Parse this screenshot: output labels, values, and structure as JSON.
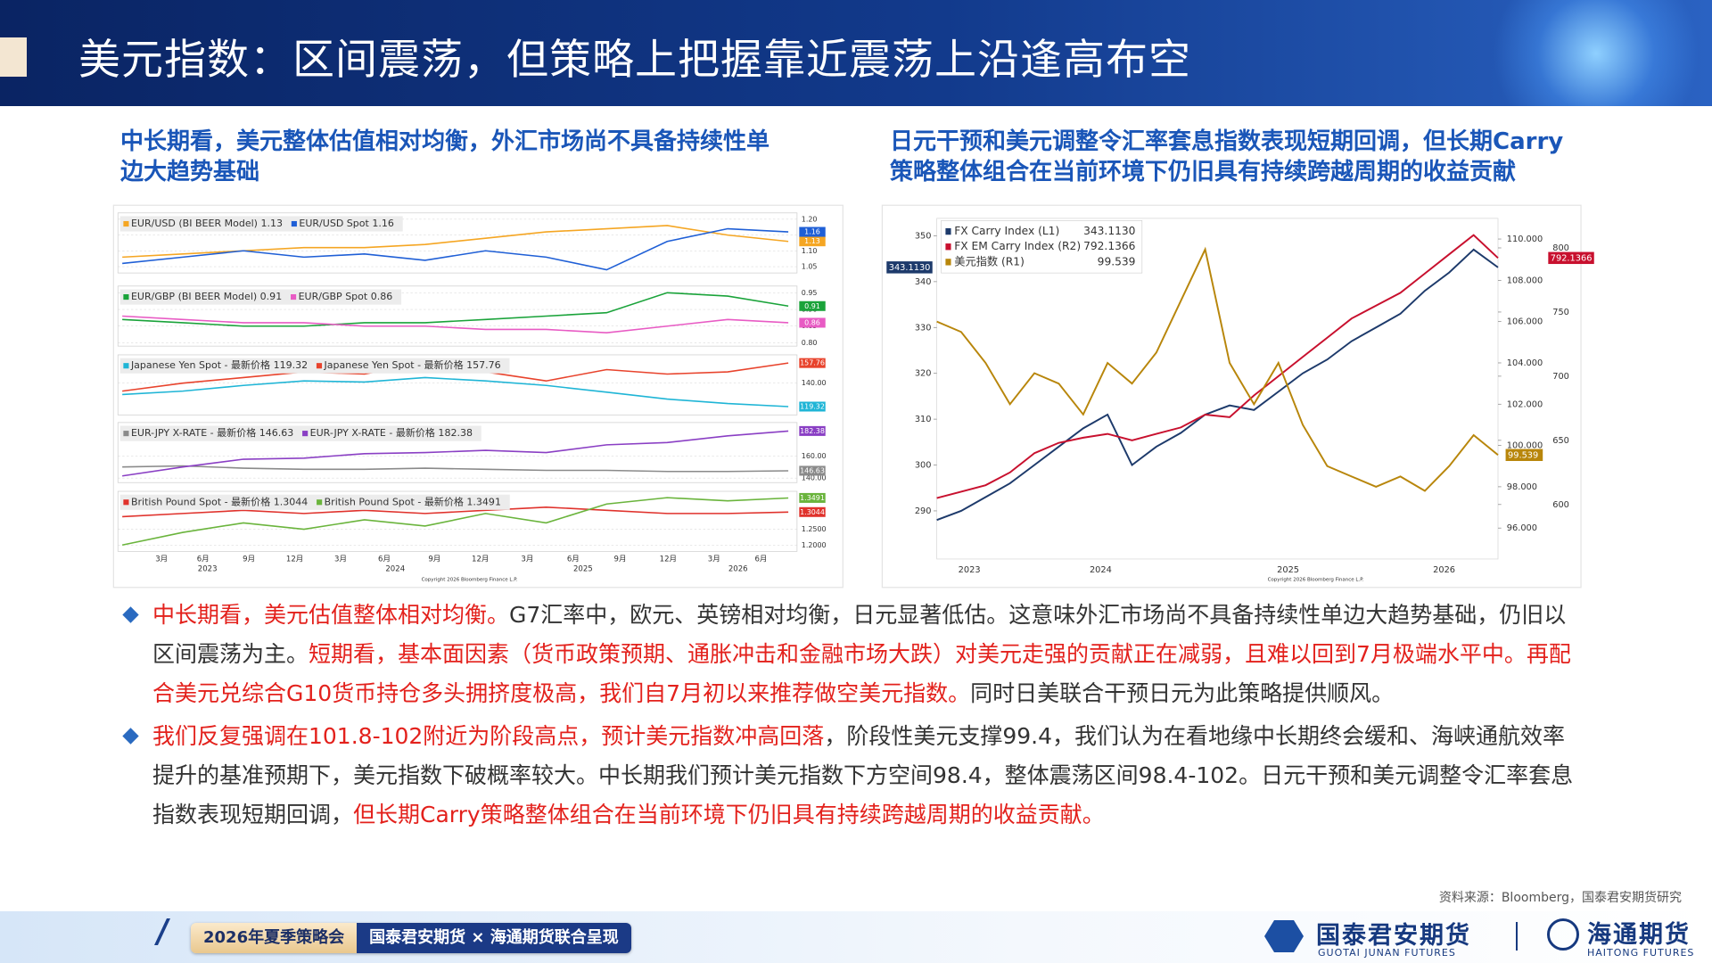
{
  "header": {
    "title": "美元指数：区间震荡，但策略上把握靠近震荡上沿逢高布空"
  },
  "colors": {
    "emphasis": "#e3211c",
    "text": "#333333"
  },
  "left": {
    "subtitle_lines": [
      "中长期看，美元整体估值相对均衡，外汇市场尚不具备持续性单",
      "边大趋势基础"
    ],
    "chart": {
      "panels": [
        {
          "ylim": [
            1.03,
            1.22
          ],
          "yticks": [
            {
              "value": 1.2,
              "label": "1.20"
            },
            {
              "value": 1.15,
              "label": "1.15"
            },
            {
              "value": 1.1,
              "label": "1.10"
            },
            {
              "value": 1.05,
              "label": "1.05"
            }
          ],
          "series": [
            {
              "name": "EUR/USD (BI BEER Model) 1.13",
              "color": "#f5a623",
              "values": [
                1.08,
                1.09,
                1.1,
                1.11,
                1.11,
                1.12,
                1.14,
                1.16,
                1.17,
                1.18,
                1.15,
                1.13
              ]
            },
            {
              "name": "EUR/USD Spot 1.16",
              "color": "#1f5fd6",
              "values": [
                1.06,
                1.08,
                1.1,
                1.08,
                1.09,
                1.07,
                1.1,
                1.08,
                1.04,
                1.13,
                1.17,
                1.16
              ]
            }
          ]
        },
        {
          "ylim": [
            0.79,
            0.97
          ],
          "yticks": [
            {
              "value": 0.95,
              "label": "0.95"
            },
            {
              "value": 0.9,
              "label": "0.90"
            },
            {
              "value": 0.85,
              "label": "0.85"
            },
            {
              "value": 0.8,
              "label": "0.80"
            }
          ],
          "series": [
            {
              "name": "EUR/GBP (BI BEER Model) 0.91",
              "color": "#1aa33a",
              "values": [
                0.87,
                0.86,
                0.85,
                0.85,
                0.86,
                0.86,
                0.87,
                0.88,
                0.89,
                0.95,
                0.94,
                0.91
              ]
            },
            {
              "name": "EUR/GBP Spot 0.86",
              "color": "#e85bc4",
              "values": [
                0.88,
                0.87,
                0.86,
                0.86,
                0.85,
                0.85,
                0.84,
                0.84,
                0.83,
                0.85,
                0.87,
                0.86
              ]
            }
          ]
        },
        {
          "ylim": [
            112,
            165
          ],
          "yticks": [
            {
              "value": 140,
              "label": "140.00"
            }
          ],
          "series": [
            {
              "name": "Japanese Yen Spot - 最新价格 119.32",
              "color": "#1fb5d6",
              "values": [
                130,
                133,
                138,
                142,
                141,
                145,
                142,
                138,
                132,
                126,
                122,
                119.32
              ]
            },
            {
              "name": "Japanese Yen Spot - 最新价格 157.76",
              "color": "#e8432c",
              "values": [
                133,
                140,
                145,
                150,
                148,
                158,
                150,
                142,
                152,
                148,
                150,
                157.76
              ]
            }
          ]
        },
        {
          "ylim": [
            136,
            190
          ],
          "yticks": [
            {
              "value": 160,
              "label": "160.00"
            },
            {
              "value": 140,
              "label": "140.00"
            }
          ],
          "series": [
            {
              "name": "EUR-JPY X-RATE - 最新价格 146.63",
              "color": "#8a8a8a",
              "values": [
                150,
                151,
                149,
                148,
                148,
                149,
                148,
                147,
                147,
                146,
                146,
                146.63
              ]
            },
            {
              "name": "EUR-JPY X-RATE - 最新价格 182.38",
              "color": "#8a3fc4",
              "values": [
                142,
                150,
                157,
                158,
                162,
                163,
                165,
                163,
                170,
                172,
                178,
                182.38
              ]
            }
          ]
        },
        {
          "ylim": [
            1.18,
            1.37
          ],
          "yticks": [
            {
              "value": 1.25,
              "label": "1.2500"
            },
            {
              "value": 1.2,
              "label": "1.2000"
            }
          ],
          "series": [
            {
              "name": "British Pound Spot - 最新价格 1.3044",
              "color": "#e0322c",
              "values": [
                1.29,
                1.3,
                1.31,
                1.3,
                1.31,
                1.3,
                1.31,
                1.32,
                1.31,
                1.3,
                1.3,
                1.3044
              ]
            },
            {
              "name": "British Pound Spot - 最新价格 1.3491",
              "color": "#6ab43c",
              "values": [
                1.2,
                1.24,
                1.27,
                1.25,
                1.28,
                1.26,
                1.3,
                1.27,
                1.33,
                1.35,
                1.34,
                1.3491
              ]
            }
          ]
        }
      ],
      "month_labels": [
        "3月",
        "6月",
        "9月",
        "12月",
        "3月",
        "6月",
        "9月",
        "12月",
        "3月",
        "6月",
        "9月",
        "12月",
        "3月",
        "6月"
      ],
      "year_labels": [
        "2023",
        "2024",
        "2025",
        "2026"
      ],
      "copyright": "Copyright 2026 Bloomberg Finance L.P."
    }
  },
  "right": {
    "subtitle_lines": [
      "日元干预和美元调整令汇率套息指数表现短期回调，但长期Carry",
      "策略整体组合在当前环境下仍旧具有持续跨越周期的收益贡献"
    ],
    "chart": {
      "left_axis": {
        "lim": [
          279.5,
          353.8
        ],
        "ticks": [
          290,
          300,
          310,
          320,
          330,
          340,
          350
        ]
      },
      "right_axis_1": {
        "lim": [
          94.5,
          111
        ],
        "ticks": [
          {
            "value": 96,
            "label": "96.000"
          },
          {
            "value": 98,
            "label": "98.000"
          },
          {
            "value": 100,
            "label": "100.000"
          },
          {
            "value": 102,
            "label": "102.000"
          },
          {
            "value": 104,
            "label": "104.000"
          },
          {
            "value": 106,
            "label": "106.000"
          },
          {
            "value": 108,
            "label": "108.000"
          },
          {
            "value": 110,
            "label": "110.000"
          }
        ]
      },
      "right_axis_2": {
        "lim": [
          557.5,
          823
        ],
        "ticks": [
          600,
          650,
          700,
          750,
          800
        ]
      },
      "series": [
        {
          "name": "FX Carry Index (L1)",
          "last": "343.1130",
          "color": "#1d3a6b",
          "axis": "left_axis",
          "values": [
            288,
            290,
            293,
            296,
            300,
            304,
            308,
            311,
            300,
            304,
            307,
            311,
            313,
            312,
            316,
            320,
            323,
            327,
            330,
            333,
            338,
            342,
            347,
            343.113
          ]
        },
        {
          "name": "FX EM Carry Index (R2)",
          "last": "792.1366",
          "color": "#c8102e",
          "axis": "right_axis_2",
          "values": [
            605,
            610,
            615,
            625,
            640,
            648,
            652,
            655,
            650,
            655,
            660,
            670,
            668,
            685,
            700,
            715,
            730,
            745,
            755,
            765,
            780,
            795,
            810,
            792.1366
          ]
        },
        {
          "name": "美元指数 (R1)",
          "last": "99.539",
          "color": "#b8860b",
          "axis": "right_axis_1",
          "values": [
            106,
            105.5,
            104,
            102,
            103.5,
            103,
            101.5,
            104,
            103,
            104.5,
            107,
            109.5,
            104,
            102,
            104,
            101,
            99,
            98.5,
            98,
            98.5,
            97.8,
            99,
            100.5,
            99.539
          ]
        }
      ],
      "year_labels": [
        "2023",
        "2024",
        "2025",
        "2026"
      ],
      "copyright": "Copyright 2026 Bloomberg Finance L.P."
    }
  },
  "bullets": [
    {
      "runs": [
        {
          "text": "中长期看，美元估值整体相对均衡。",
          "emphasis": true
        },
        {
          "text": "G7汇率中，欧元、英镑相对均衡，日元显著低估。这意味外汇市场尚不具备持续性单边大趋势基础，仍旧以区间震荡为主。",
          "emphasis": false
        },
        {
          "text": "短期看，基本面因素（货币政策预期、通胀冲击和金融市场大跌）对美元走强的贡献正在减弱，且难以回到7月极端水平中。再配合美元兑综合G10货币持仓多头拥挤度极高，我们自7月初以来推荐做空美元指数。",
          "emphasis": true
        },
        {
          "text": "同时日美联合干预日元为此策略提供顺风。",
          "emphasis": false
        }
      ]
    },
    {
      "runs": [
        {
          "text": "我们反复强调在101.8-102附近为阶段高点，预计美元指数冲高回落",
          "emphasis": true
        },
        {
          "text": "，阶段性美元支撑99.4，我们认为在看地缘中长期终会缓和、海峡通航效率提升的基准预期下，美元指数下破概率较大。中长期我们预计美元指数下方空间98.4，整体震荡区间98.4-102。日元干预和美元调整令汇率套息指数表现短期回调，",
          "emphasis": false
        },
        {
          "text": "但长期Carry策略整体组合在当前环境下仍旧具有持续跨越周期的收益贡献。",
          "emphasis": true
        }
      ]
    }
  ],
  "source": "资料来源：Bloomberg，国泰君安期货研究",
  "footer": {
    "event": "2026年夏季策略会",
    "presenter": "国泰君安期货 × 海通期货联合呈现",
    "logo1": "国泰君安期货",
    "logo1_en": "GUOTAI JUNAN FUTURES",
    "logo2": "海通期货",
    "logo2_en": "HAITONG FUTURES"
  }
}
